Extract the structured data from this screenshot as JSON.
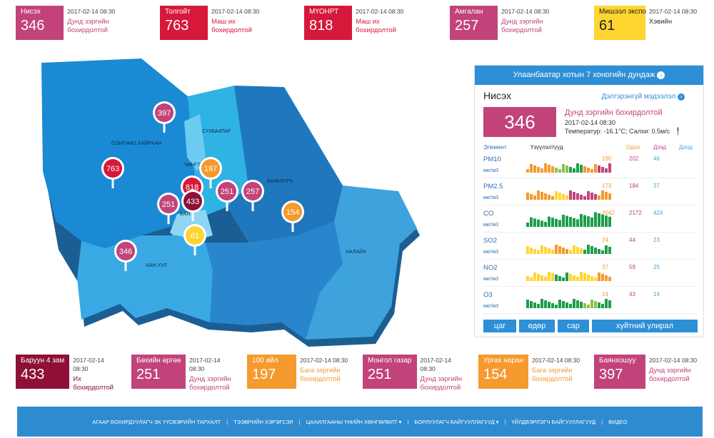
{
  "top_cards": [
    {
      "name": "Нисэх",
      "value": "346",
      "time": "2017-02-14 08:30",
      "level": "Дунд зэргийн бохирдолтой",
      "color": "#c2437a"
    },
    {
      "name": "Толгойт",
      "value": "763",
      "time": "2017-02-14 08:30",
      "level": "Маш их бохирдолтой",
      "color": "#d6183b"
    },
    {
      "name": "МҮОНРТ",
      "value": "818",
      "time": "2017-02-14 08:30",
      "level": "Маш их бохирдолтой",
      "color": "#d6183b"
    },
    {
      "name": "Амгалан",
      "value": "257",
      "time": "2017-02-14 08:30",
      "level": "Дунд зэргийн бохирдолтой",
      "color": "#c2437a"
    },
    {
      "name": "Мишээл экспо",
      "value": "61",
      "time": "2017-02-14 08:30",
      "level": "Хэвийн",
      "color": "#ffd530"
    }
  ],
  "bottom_cards": [
    {
      "name": "Баруун 4 зам",
      "value": "433",
      "time": "2017-02-14 08:30",
      "level": "Их бохирдолтой",
      "color": "#8e1037"
    },
    {
      "name": "Бөхийн өргөө",
      "value": "251",
      "time": "2017-02-14 08:30",
      "level": "Дунд зэргийн бохирдолтой",
      "color": "#c2437a"
    },
    {
      "name": "100 айл",
      "value": "197",
      "time": "2017-02-14 08:30",
      "level": "Бага зэргийн бохирдолтой",
      "color": "#f59a2f"
    },
    {
      "name": "Монгол газар",
      "value": "251",
      "time": "2017-02-14 08:30",
      "level": "Дунд зэргийн бохирдолтой",
      "color": "#c2437a"
    },
    {
      "name": "Ургах наран",
      "value": "154",
      "time": "2017-02-14 08:30",
      "level": "Бага зэргийн бохирдолтой",
      "color": "#f59a2f"
    },
    {
      "name": "Баянхошуу",
      "value": "397",
      "time": "2017-02-14 08:30",
      "level": "Дунд зэргийн бохирдолтой",
      "color": "#c2437a"
    }
  ],
  "map": {
    "districts": [
      "СОНГИНО ХАЙРХАН",
      "СҮХБААТАР",
      "ЧИНГЭ...",
      "БАЯНЗҮРХ",
      "ХАН УУЛ",
      "НАЛАЙХ",
      "БАЯ..."
    ],
    "pins": [
      {
        "value": "397",
        "color": "#c2437a"
      },
      {
        "value": "763",
        "color": "#d6183b"
      },
      {
        "value": "197",
        "color": "#f59a2f"
      },
      {
        "value": "818",
        "color": "#d6183b"
      },
      {
        "value": "433",
        "color": "#8e1037"
      },
      {
        "value": "251",
        "color": "#c2437a"
      },
      {
        "value": "251",
        "color": "#c2437a"
      },
      {
        "value": "257",
        "color": "#c2437a"
      },
      {
        "value": "154",
        "color": "#f59a2f"
      },
      {
        "value": "61",
        "color": "#ffd530"
      },
      {
        "value": "346",
        "color": "#c2437a"
      }
    ]
  },
  "panel": {
    "header": "Улаанбаатар хотын 7 хоногийн дундаж",
    "station": "Нисэх",
    "more_link": "Дэлгэрэнгүй мэдээлэл",
    "value": "346",
    "level": "Дунд зэргийн бохирдолтой",
    "time": "2017-02-14 08:30",
    "weather": "Температур: -16.1°C; Салхи: 0.5м/с",
    "col_element": "Элемент",
    "col_indicators": "Үзүүлэлтүүд",
    "col_now": "Одоо",
    "col_max": "Дээд",
    "col_min": "Доод",
    "rows": [
      {
        "name": "PM10",
        "unit": "мкг/м3",
        "now": "190",
        "max": "202",
        "min": "46"
      },
      {
        "name": "PM2.5",
        "unit": "мкг/м3",
        "now": "173",
        "max": "184",
        "min": "37"
      },
      {
        "name": "CO",
        "unit": "мкг/м3",
        "now": "2042",
        "max": "2172",
        "min": "424"
      },
      {
        "name": "SO2",
        "unit": "мкг/м3",
        "now": "24",
        "max": "44",
        "min": "23"
      },
      {
        "name": "NO2",
        "unit": "мкг/м3",
        "now": "37",
        "max": "59",
        "min": "25"
      },
      {
        "name": "O3",
        "unit": "мкг/м3",
        "now": "14",
        "max": "43",
        "min": "14"
      }
    ],
    "tabs": [
      "цаг",
      "өдөр",
      "сар",
      "хуйтний улирал"
    ]
  },
  "footer": [
    "АГААР БОХИРДУУЛАГЧ ЭХ ҮҮСВЭРИЙН ТАРХАЛТ",
    "ТЭЭВРИЙН ХЭРЭГСЭЛ",
    "ЦАХИЛГААНЫ ҮНИЙН ХӨНГӨЛӨЛТ ▾",
    "БОРЛУУЛАГЧ БАЙГУУЛЛАГУУД ▾",
    "ҮЙЛДВЭРЛЭГЧ БАЙГУУЛЛАГУУД",
    "ВИДЕО"
  ]
}
